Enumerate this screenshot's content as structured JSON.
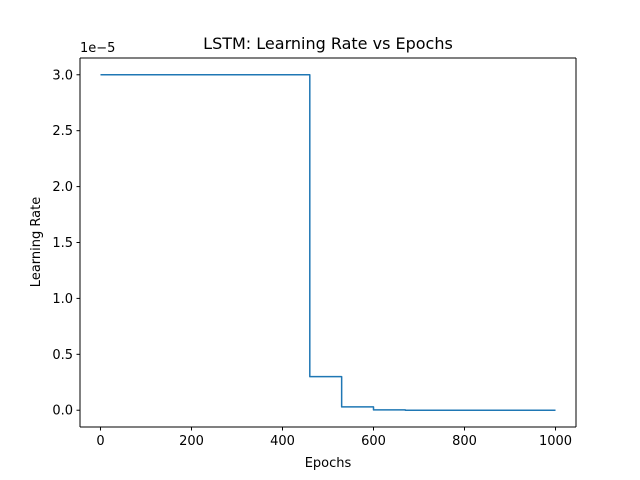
{
  "chart_data": {
    "type": "line",
    "title": "LSTM: Learning Rate vs Epochs",
    "xlabel": "Epochs",
    "ylabel": "Learning Rate",
    "y_offset_text": "1e−5",
    "y_scale_exponent": -5,
    "xlim": [
      -45,
      1045
    ],
    "ylim": [
      -1.5e-06,
      3.15e-05
    ],
    "x_ticks": [
      0,
      200,
      400,
      600,
      800,
      1000
    ],
    "x_tick_labels": [
      "0",
      "200",
      "400",
      "600",
      "800",
      "1000"
    ],
    "y_ticks": [
      0,
      5e-06,
      1e-05,
      1.5e-05,
      2e-05,
      2.5e-05,
      3e-05
    ],
    "y_tick_labels": [
      "0.0",
      "0.5",
      "1.0",
      "1.5",
      "2.0",
      "2.5",
      "3.0"
    ],
    "grid": false,
    "series": [
      {
        "color": "#1f77b4",
        "x": [
          0,
          460,
          460,
          530,
          530,
          600,
          600,
          670,
          670,
          1000
        ],
        "y": [
          3e-05,
          3e-05,
          3e-06,
          3e-06,
          3e-07,
          3e-07,
          3e-08,
          3e-08,
          3e-09,
          3e-09
        ]
      }
    ]
  }
}
